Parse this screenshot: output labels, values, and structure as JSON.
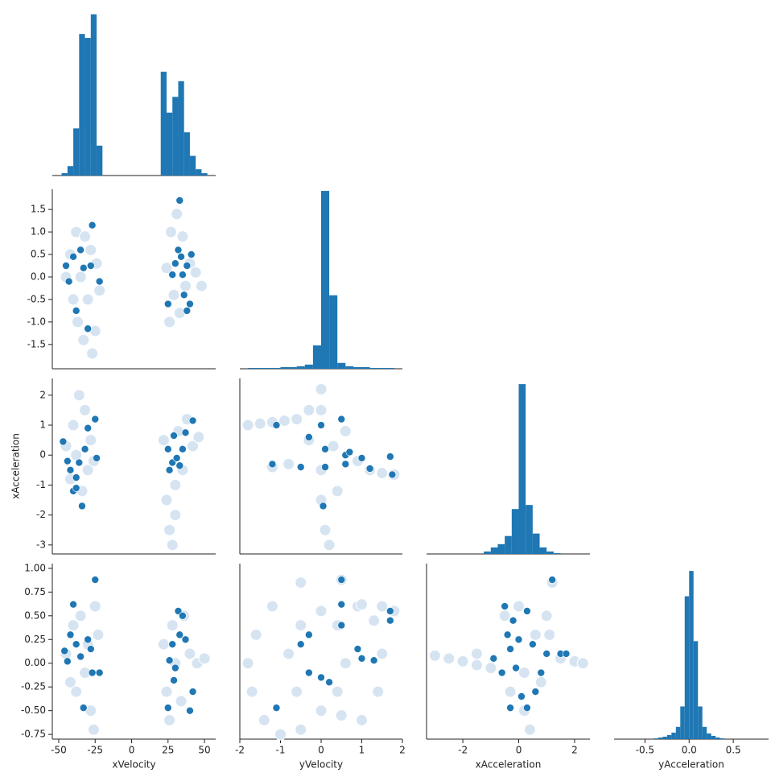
{
  "chart_data": [
    {
      "type": "histogram",
      "color": "#1f77b4",
      "xlim": [
        -54.4,
        57.7
      ],
      "ylim": [
        0,
        215
      ],
      "bins": [
        -48,
        -44,
        -40,
        -36,
        -32,
        -28,
        -24,
        -20,
        -16,
        -12,
        -8,
        -4,
        0,
        4,
        8,
        12,
        16,
        20,
        24,
        28,
        32,
        36,
        40,
        44,
        48,
        52
      ],
      "values": [
        3,
        12,
        60,
        180,
        175,
        205,
        38,
        0,
        0,
        0,
        0,
        0,
        0,
        0,
        0,
        0,
        0,
        132,
        80,
        100,
        120,
        55,
        25,
        8,
        3
      ]
    },
    {
      "type": "scatter",
      "xlim": [
        -54.4,
        57.7
      ],
      "ylim": [
        -2.04,
        1.95
      ],
      "yticks": [
        -1.5,
        {
          "value": -1,
          "label": "-1.0"
        },
        -0.5,
        {
          "value": 0,
          "label": "0.0"
        },
        0.5,
        {
          "value": 1,
          "label": "1.0"
        },
        1.5
      ],
      "series": [
        {
          "color": "#d6e4f2",
          "x": [
            -45,
            -42,
            -40,
            -38,
            -37,
            -35,
            -33,
            -32,
            -30,
            -28,
            -27,
            -25,
            -24,
            -22,
            24,
            26,
            27,
            29,
            31,
            33,
            35,
            37,
            40,
            44,
            48
          ],
          "values": [
            0,
            0.5,
            -0.5,
            1.0,
            -1.0,
            0,
            -1.4,
            0.9,
            -0.5,
            0.6,
            -1.7,
            -1.2,
            0.3,
            -0.3,
            0.2,
            -1.0,
            1.0,
            -0.4,
            1.4,
            -0.8,
            0.9,
            -0.2,
            0.3,
            0.1,
            -0.2
          ]
        },
        {
          "color": "#1f77b4",
          "x": [
            -45,
            -43,
            -40,
            -38,
            -35,
            -33,
            -30,
            -28,
            -27,
            -22,
            25,
            28,
            30,
            32,
            33,
            34,
            35,
            36,
            38,
            38,
            40,
            41
          ],
          "values": [
            0.25,
            -0.1,
            0.45,
            -0.75,
            0.6,
            0.2,
            -1.15,
            0.25,
            1.15,
            -0.1,
            -0.6,
            0.05,
            0.3,
            0.6,
            1.7,
            0.45,
            0.05,
            -0.4,
            0.25,
            -0.75,
            -0.6,
            0.5
          ]
        }
      ]
    },
    {
      "type": "histogram",
      "color": "#1f77b4",
      "xlim": [
        -2.0,
        2.0
      ],
      "ylim": [
        0,
        215
      ],
      "bins": [
        -1.8,
        -1.6,
        -1.4,
        -1.2,
        -1.0,
        -0.8,
        -0.6,
        -0.4,
        -0.2,
        0,
        0.2,
        0.4,
        0.6,
        0.8,
        1.0,
        1.2,
        1.4,
        1.6,
        1.8
      ],
      "values": [
        1,
        1,
        1,
        1,
        2,
        2,
        3,
        5,
        28,
        213,
        88,
        7,
        3,
        2,
        2,
        1,
        1,
        1
      ]
    },
    {
      "type": "scatter",
      "xlim": [
        -54.4,
        57.7
      ],
      "ylim": [
        -3.3,
        2.56
      ],
      "ylabel": "xAcceleration",
      "yticks": [
        -3,
        -2,
        -1,
        0,
        1,
        2
      ],
      "series": [
        {
          "color": "#d6e4f2",
          "x": [
            -45,
            -42,
            -40,
            -38,
            -36,
            -34,
            -32,
            -30,
            -28,
            -26,
            22,
            24,
            26,
            28,
            30,
            32,
            35,
            38,
            42,
            46,
            30
          ],
          "values": [
            0.3,
            -0.8,
            1.0,
            0,
            2.0,
            -1.2,
            1.5,
            -0.5,
            0.5,
            -0.2,
            0.5,
            -1.5,
            -2.5,
            -3.0,
            -1.0,
            0.8,
            -0.5,
            1.2,
            0.3,
            0.6,
            -2.0
          ]
        },
        {
          "color": "#1f77b4",
          "x": [
            -47,
            -44,
            -42,
            -40,
            -38,
            -36,
            -34,
            -32,
            -30,
            -25,
            -24,
            -38,
            25,
            26,
            28,
            29,
            31,
            33,
            35,
            37,
            42
          ],
          "values": [
            0.45,
            -0.2,
            -0.5,
            -1.2,
            -0.75,
            -0.25,
            -1.7,
            0.2,
            0.9,
            1.2,
            -0.1,
            -1.1,
            0.2,
            -0.5,
            -0.25,
            0.65,
            -0.1,
            -0.35,
            0.2,
            0.75,
            1.15
          ]
        }
      ]
    },
    {
      "type": "scatter",
      "xlim": [
        -2.0,
        2.0
      ],
      "ylim": [
        -3.3,
        2.56
      ],
      "series": [
        {
          "color": "#d6e4f2",
          "x": [
            -1.8,
            -1.5,
            -1.2,
            -0.9,
            -0.6,
            -0.3,
            0,
            0,
            0,
            0,
            0.1,
            0.2,
            0.3,
            0.6,
            0.9,
            1.2,
            1.5,
            1.8,
            -1.2,
            -0.8,
            0.4,
            -0.3
          ],
          "values": [
            1.0,
            1.05,
            1.1,
            1.15,
            1.2,
            0.5,
            2.2,
            1.5,
            -0.5,
            -1.5,
            -2.5,
            -3.0,
            0.3,
            0.8,
            -0.2,
            -0.5,
            -0.6,
            -0.65,
            -0.4,
            -0.3,
            -1.2,
            1.5
          ]
        },
        {
          "color": "#1f77b4",
          "x": [
            -1.1,
            -1.2,
            -0.3,
            -0.5,
            0,
            0.1,
            0.1,
            0.5,
            0.6,
            0.6,
            0.7,
            1.0,
            1.2,
            1.7,
            1.75,
            0.05
          ],
          "values": [
            1.0,
            -0.3,
            0.6,
            -0.4,
            1.0,
            0.2,
            -0.4,
            1.2,
            0,
            -0.3,
            0.1,
            -0.1,
            -0.45,
            -0.05,
            -0.65,
            -1.7
          ]
        }
      ]
    },
    {
      "type": "histogram",
      "color": "#1f77b4",
      "xlim": [
        -3.3,
        2.55
      ],
      "ylim": [
        0,
        215
      ],
      "bins": [
        -3,
        -2.75,
        -2.5,
        -2.25,
        -2,
        -1.75,
        -1.5,
        -1.25,
        -1,
        -0.75,
        -0.5,
        -0.25,
        0,
        0.25,
        0.5,
        0.75,
        1,
        1.25,
        1.5,
        1.75,
        2,
        2.25,
        2.5
      ],
      "values": [
        0,
        0,
        0,
        0,
        0,
        0,
        0,
        3,
        8,
        12,
        22,
        55,
        208,
        60,
        25,
        8,
        3,
        1,
        0,
        0,
        0,
        0
      ]
    },
    {
      "type": "scatter",
      "xlim": [
        -54.4,
        57.7
      ],
      "ylim": [
        -0.8,
        1.05
      ],
      "xlabel": "xVelocity",
      "xticks": [
        -50,
        -25,
        0,
        25,
        50
      ],
      "yticks": [
        -0.75,
        {
          "value": -0.5,
          "label": "-0.50"
        },
        -0.25,
        {
          "value": 0,
          "label": "0.00"
        },
        0.25,
        {
          "value": 0.5,
          "label": "0.50"
        },
        0.75,
        {
          "value": 1,
          "label": "1.00"
        }
      ],
      "series": [
        {
          "color": "#d6e4f2",
          "x": [
            -45,
            -42,
            -40,
            -38,
            -35,
            -32,
            -30,
            -28,
            -26,
            -25,
            -23,
            22,
            24,
            26,
            28,
            30,
            34,
            36,
            40,
            45,
            50
          ],
          "values": [
            0.1,
            -0.2,
            0.4,
            -0.3,
            0.5,
            -0.1,
            0.2,
            -0.5,
            -0.7,
            0.6,
            0.3,
            0.2,
            -0.3,
            -0.6,
            0.4,
            0,
            -0.4,
            0.5,
            0.1,
            0,
            0.05
          ]
        },
        {
          "color": "#1f77b4",
          "x": [
            -46,
            -44,
            -42,
            -40,
            -38,
            -35,
            -33,
            -30,
            -28,
            -25,
            -22,
            -27,
            25,
            26,
            28,
            29,
            30,
            32,
            33,
            35,
            37,
            40,
            42
          ],
          "values": [
            0.13,
            0.02,
            0.3,
            0.62,
            0.2,
            0.07,
            -0.47,
            0.25,
            0.15,
            0.88,
            -0.1,
            -0.1,
            -0.47,
            0.03,
            0.2,
            -0.18,
            -0.05,
            0.55,
            0.3,
            0.5,
            0.25,
            -0.5,
            -0.3
          ]
        }
      ]
    },
    {
      "type": "scatter",
      "xlim": [
        -2.0,
        2.0
      ],
      "ylim": [
        -0.8,
        1.05
      ],
      "xlabel": "yVelocity",
      "xticks": [
        -2,
        -1,
        0,
        1,
        2
      ],
      "series": [
        {
          "color": "#d6e4f2",
          "x": [
            0.5,
            -0.5,
            -1.2,
            -1.6,
            -1.8,
            -1.7,
            -1.4,
            -1.0,
            -0.5,
            0,
            0.4,
            0.6,
            0.4,
            0,
            -0.5,
            -0.8,
            -0.6,
            0.5,
            1.0,
            1.4,
            1.5,
            1.3,
            0.9,
            1.0,
            1.5,
            1.8
          ],
          "values": [
            0.88,
            0.85,
            0.6,
            0.3,
            0,
            -0.3,
            -0.6,
            -0.75,
            -0.7,
            -0.5,
            -0.3,
            0,
            0.4,
            0.55,
            0.4,
            0.1,
            -0.3,
            -0.55,
            -0.6,
            -0.3,
            0.1,
            0.45,
            0.6,
            0.62,
            0.6,
            0.55
          ]
        },
        {
          "color": "#1f77b4",
          "x": [
            -1.1,
            -0.3,
            -0.3,
            0.2,
            0.5,
            0.5,
            0.5,
            0.9,
            1.0,
            1.3,
            1.7,
            1.7,
            0.0,
            -0.5
          ],
          "values": [
            -0.47,
            0.3,
            -0.1,
            -0.2,
            0.62,
            0.88,
            0.4,
            0.15,
            0.05,
            0.03,
            0.55,
            0.45,
            -0.15,
            0.2
          ]
        }
      ]
    },
    {
      "type": "scatter",
      "xlim": [
        -3.3,
        2.55
      ],
      "ylim": [
        -0.8,
        1.05
      ],
      "xlabel": "xAcceleration",
      "xticks": [
        -2,
        0,
        2
      ],
      "series": [
        {
          "color": "#d6e4f2",
          "x": [
            -3.0,
            -2.5,
            -2.0,
            -1.5,
            -1.0,
            -0.5,
            -0.3,
            0,
            0.2,
            0.4,
            0.6,
            0.8,
            1.0,
            1.2,
            1.1,
            1.5,
            2.0,
            2.3,
            -1.5,
            0.2
          ],
          "values": [
            0.08,
            0.05,
            0.02,
            -0.02,
            -0.05,
            0.5,
            -0.3,
            0.6,
            -0.5,
            -0.7,
            0.3,
            -0.2,
            0.5,
            0.85,
            0.3,
            0.05,
            0.02,
            0,
            0.1,
            -0.1
          ]
        },
        {
          "color": "#1f77b4",
          "x": [
            -0.9,
            -0.6,
            -0.5,
            -0.4,
            -0.3,
            -0.2,
            -0.1,
            0,
            0.1,
            0.3,
            0.5,
            0.8,
            1.0,
            1.2,
            1.5,
            1.7,
            -0.3,
            0.3,
            0.6
          ],
          "values": [
            0.05,
            -0.1,
            0.6,
            0.3,
            0.15,
            0.45,
            -0.05,
            0.25,
            -0.35,
            0.55,
            0.2,
            -0.1,
            0.1,
            0.88,
            0.1,
            0.1,
            -0.47,
            -0.47,
            -0.3
          ]
        }
      ]
    },
    {
      "type": "histogram",
      "color": "#1f77b4",
      "xlim": [
        -0.85,
        0.9
      ],
      "ylim": [
        0,
        215
      ],
      "xlabel": "yAcceleration",
      "xticks": [
        -0.5,
        {
          "value": 0,
          "label": "0.0"
        },
        0.5
      ],
      "bins": [
        -0.4,
        -0.35,
        -0.3,
        -0.25,
        -0.2,
        -0.15,
        -0.1,
        -0.05,
        0,
        0.05,
        0.1,
        0.15,
        0.2,
        0.25,
        0.3,
        0.35,
        0.4
      ],
      "values": [
        1,
        2,
        3,
        5,
        8,
        15,
        40,
        175,
        206,
        120,
        40,
        15,
        7,
        4,
        2,
        1
      ]
    }
  ]
}
